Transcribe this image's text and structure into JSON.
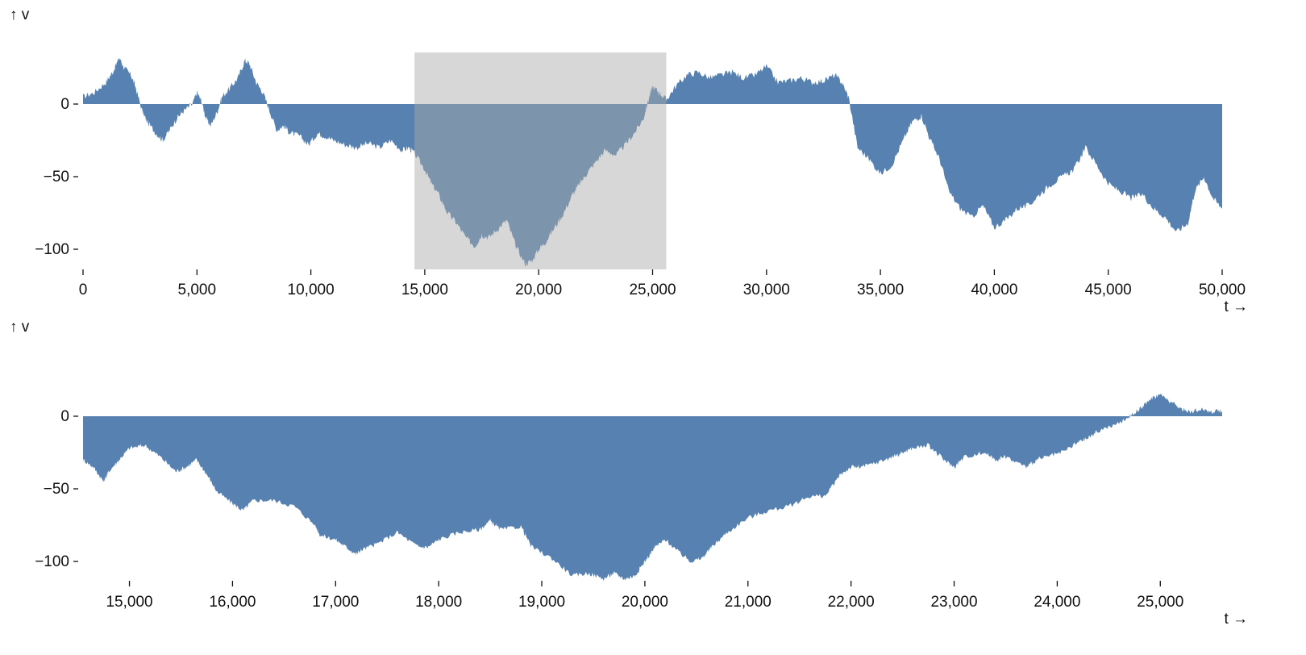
{
  "chart_data": [
    {
      "type": "area",
      "role": "overview",
      "ylabel": "↑ v",
      "xlabel": "t →",
      "xlim": [
        0,
        50000
      ],
      "ylim": [
        -115,
        40
      ],
      "xticks": [
        0,
        5000,
        10000,
        15000,
        20000,
        25000,
        30000,
        35000,
        40000,
        45000,
        50000
      ],
      "xtick_labels": [
        "0",
        "5,000",
        "10,000",
        "15,000",
        "20,000",
        "25,000",
        "30,000",
        "35,000",
        "40,000",
        "45,000",
        "50,000"
      ],
      "yticks": [
        0,
        -50,
        -100
      ],
      "ytick_labels": [
        "0",
        "−50",
        "−100"
      ],
      "brush": [
        14550,
        25600
      ],
      "series": [
        {
          "x": [
            0,
            500,
            1000,
            1300,
            1600,
            1800,
            2100,
            2300,
            2600,
            2800,
            3200,
            3500,
            3800,
            4100,
            4400,
            4800,
            5000,
            5200,
            5400,
            5600,
            5900,
            6100,
            6500,
            6800,
            7100,
            7300,
            7600,
            7900,
            8200,
            8500,
            8800,
            9100,
            9500,
            9900,
            10300,
            10600,
            11000,
            11500,
            12000,
            12500,
            13000,
            13500,
            14000,
            14300,
            14550,
            15000,
            15300,
            15600,
            16000,
            16400,
            16800,
            17200,
            17500,
            17800,
            18200,
            18600,
            19000,
            19400,
            19700,
            20000,
            20300,
            20700,
            21100,
            21500,
            21800,
            22100,
            22500,
            22900,
            23400,
            23800,
            24200,
            24600,
            24800,
            25000,
            25300,
            25600,
            26000,
            26500,
            27000,
            27500,
            28000,
            28500,
            29000,
            29500,
            30000,
            30500,
            31000,
            31500,
            32000,
            32500,
            33000,
            33300,
            33600,
            34000,
            34500,
            35000,
            35500,
            36000,
            36400,
            36800,
            37200,
            37600,
            38000,
            38500,
            39000,
            39500,
            40000,
            40500,
            41000,
            41500,
            42000,
            42500,
            43000,
            43500,
            44000,
            44500,
            45000,
            45500,
            46000,
            46500,
            47000,
            47500,
            48000,
            48500,
            48800,
            49200,
            49600,
            50000
          ],
          "values": [
            5,
            8,
            15,
            22,
            32,
            25,
            20,
            12,
            -5,
            -12,
            -20,
            -25,
            -18,
            -10,
            -5,
            0,
            8,
            2,
            -10,
            -15,
            -5,
            5,
            12,
            18,
            30,
            28,
            15,
            8,
            -5,
            -18,
            -15,
            -20,
            -22,
            -28,
            -20,
            -22,
            -25,
            -28,
            -30,
            -27,
            -30,
            -25,
            -32,
            -30,
            -34,
            -45,
            -55,
            -62,
            -75,
            -82,
            -92,
            -98,
            -90,
            -92,
            -86,
            -80,
            -98,
            -110,
            -108,
            -100,
            -95,
            -85,
            -75,
            -62,
            -55,
            -48,
            -40,
            -32,
            -35,
            -28,
            -20,
            -10,
            2,
            12,
            8,
            3,
            12,
            20,
            22,
            18,
            20,
            22,
            18,
            20,
            26,
            15,
            16,
            18,
            15,
            16,
            20,
            15,
            5,
            -30,
            -38,
            -48,
            -42,
            -25,
            -12,
            -8,
            -25,
            -38,
            -60,
            -72,
            -78,
            -70,
            -85,
            -80,
            -72,
            -70,
            -62,
            -55,
            -50,
            -45,
            -30,
            -42,
            -55,
            -60,
            -65,
            -62,
            -72,
            -78,
            -88,
            -82,
            -60,
            -50,
            -65,
            -72
          ]
        }
      ]
    },
    {
      "type": "area",
      "role": "detail",
      "ylabel": "↑ v",
      "xlabel": "t →",
      "xlim": [
        14550,
        25600
      ],
      "ylim": [
        -115,
        30
      ],
      "xticks": [
        15000,
        16000,
        17000,
        18000,
        19000,
        20000,
        21000,
        22000,
        23000,
        24000,
        25000
      ],
      "xtick_labels": [
        "15,000",
        "16,000",
        "17,000",
        "18,000",
        "19,000",
        "20,000",
        "21,000",
        "22,000",
        "23,000",
        "24,000",
        "25,000"
      ],
      "yticks": [
        0,
        -50,
        -100
      ],
      "ytick_labels": [
        "0",
        "−50",
        "−100"
      ],
      "series": [
        {
          "x": [
            14550,
            14650,
            14750,
            14800,
            14900,
            15000,
            15150,
            15300,
            15450,
            15550,
            15650,
            15750,
            15850,
            16000,
            16100,
            16200,
            16400,
            16600,
            16800,
            16850,
            17000,
            17100,
            17200,
            17250,
            17400,
            17600,
            17800,
            17900,
            18000,
            18200,
            18400,
            18500,
            18600,
            18800,
            18900,
            19100,
            19300,
            19450,
            19600,
            19700,
            19800,
            19900,
            20000,
            20100,
            20200,
            20350,
            20450,
            20550,
            20650,
            20800,
            21000,
            21200,
            21400,
            21600,
            21750,
            21900,
            22000,
            22100,
            22250,
            22400,
            22500,
            22600,
            22750,
            22900,
            23000,
            23100,
            23300,
            23400,
            23500,
            23700,
            23800,
            23900,
            24050,
            24200,
            24300,
            24400,
            24600,
            24700,
            24800,
            24850,
            24900,
            25000,
            25100,
            25200,
            25300,
            25400,
            25500,
            25600
          ],
          "values": [
            -30,
            -35,
            -45,
            -38,
            -30,
            -22,
            -20,
            -28,
            -38,
            -35,
            -30,
            -40,
            -52,
            -60,
            -65,
            -58,
            -58,
            -62,
            -75,
            -82,
            -85,
            -90,
            -95,
            -92,
            -88,
            -80,
            -90,
            -90,
            -85,
            -80,
            -78,
            -72,
            -78,
            -76,
            -90,
            -98,
            -110,
            -108,
            -112,
            -108,
            -112,
            -110,
            -100,
            -90,
            -85,
            -95,
            -100,
            -98,
            -90,
            -80,
            -70,
            -65,
            -62,
            -55,
            -55,
            -40,
            -35,
            -35,
            -32,
            -28,
            -25,
            -22,
            -20,
            -30,
            -35,
            -28,
            -25,
            -30,
            -28,
            -35,
            -30,
            -28,
            -25,
            -18,
            -15,
            -10,
            -5,
            0,
            5,
            8,
            12,
            15,
            10,
            5,
            3,
            5,
            3,
            4
          ]
        }
      ]
    }
  ]
}
